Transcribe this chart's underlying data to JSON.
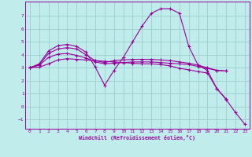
{
  "xlabel": "Windchill (Refroidissement éolien,°C)",
  "bg_color": "#c0ecec",
  "line_color": "#990099",
  "grid_color": "#9ecece",
  "xlim": [
    -0.5,
    23.5
  ],
  "ylim": [
    -1.7,
    8.1
  ],
  "xticks": [
    0,
    1,
    2,
    3,
    4,
    5,
    6,
    7,
    8,
    9,
    10,
    11,
    12,
    13,
    14,
    15,
    16,
    17,
    18,
    19,
    20,
    21,
    22,
    23
  ],
  "yticks": [
    -1,
    0,
    1,
    2,
    3,
    4,
    5,
    6,
    7
  ],
  "curves": [
    {
      "x": [
        0,
        1,
        2,
        3,
        4,
        5,
        6,
        7,
        8,
        9,
        10,
        11,
        12,
        13,
        14,
        15,
        16,
        17,
        18,
        19,
        20,
        21
      ],
      "y": [
        3.0,
        3.3,
        4.3,
        4.7,
        4.8,
        4.65,
        4.2,
        3.05,
        1.65,
        2.8,
        3.8,
        5.0,
        6.2,
        7.2,
        7.55,
        7.55,
        7.2,
        4.65,
        3.2,
        2.8,
        1.4,
        0.6
      ]
    },
    {
      "x": [
        0,
        1,
        2,
        3,
        4,
        5,
        6,
        7,
        8,
        9,
        10,
        11,
        12,
        13,
        14,
        15,
        16,
        17,
        18,
        19,
        20,
        21
      ],
      "y": [
        3.0,
        3.25,
        4.1,
        4.45,
        4.55,
        4.45,
        4.0,
        3.55,
        3.4,
        3.55,
        3.6,
        3.65,
        3.65,
        3.65,
        3.6,
        3.55,
        3.45,
        3.35,
        3.2,
        3.0,
        2.8,
        2.75
      ]
    },
    {
      "x": [
        0,
        1,
        2,
        3,
        4,
        5,
        6,
        7,
        8,
        9,
        10,
        11,
        12,
        13,
        14,
        15,
        16,
        17,
        18,
        19,
        20,
        21
      ],
      "y": [
        3.0,
        3.2,
        3.8,
        4.05,
        4.1,
        3.95,
        3.75,
        3.45,
        3.3,
        3.35,
        3.4,
        3.45,
        3.45,
        3.45,
        3.4,
        3.35,
        3.3,
        3.25,
        3.1,
        2.95,
        2.8,
        2.75
      ]
    },
    {
      "x": [
        0,
        1,
        2,
        3,
        4,
        5,
        6,
        7,
        8,
        9,
        10,
        11,
        12,
        13,
        14,
        15,
        16,
        17,
        18,
        19,
        20,
        21,
        22,
        23
      ],
      "y": [
        3.0,
        3.05,
        3.3,
        3.6,
        3.7,
        3.65,
        3.6,
        3.55,
        3.5,
        3.45,
        3.4,
        3.35,
        3.3,
        3.3,
        3.25,
        3.15,
        2.95,
        2.85,
        2.7,
        2.6,
        1.4,
        0.55,
        -0.45,
        -1.35
      ]
    }
  ]
}
